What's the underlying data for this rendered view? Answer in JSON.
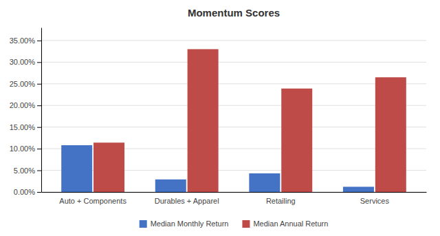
{
  "chart_data": {
    "type": "bar",
    "title": "Momentum Scores",
    "categories": [
      "Auto + Components",
      "Durables + Apparel",
      "Retailing",
      "Services"
    ],
    "series": [
      {
        "name": "Median Monthly Return",
        "color": "#4472C4",
        "values": [
          0.108,
          0.029,
          0.043,
          0.012
        ]
      },
      {
        "name": "Median Annual Return",
        "color": "#BE4B48",
        "values": [
          0.114,
          0.33,
          0.239,
          0.265
        ]
      }
    ],
    "ylim": [
      0,
      0.38
    ],
    "yticks": [
      {
        "value": 0.0,
        "label": "0.00%"
      },
      {
        "value": 0.05,
        "label": "5.00%"
      },
      {
        "value": 0.1,
        "label": "10.00%"
      },
      {
        "value": 0.15,
        "label": "15.00%"
      },
      {
        "value": 0.2,
        "label": "20.00%"
      },
      {
        "value": 0.25,
        "label": "25.00%"
      },
      {
        "value": 0.3,
        "label": "30.00%"
      },
      {
        "value": 0.35,
        "label": "35.00%"
      }
    ],
    "grid": true,
    "legend": "bottom"
  }
}
